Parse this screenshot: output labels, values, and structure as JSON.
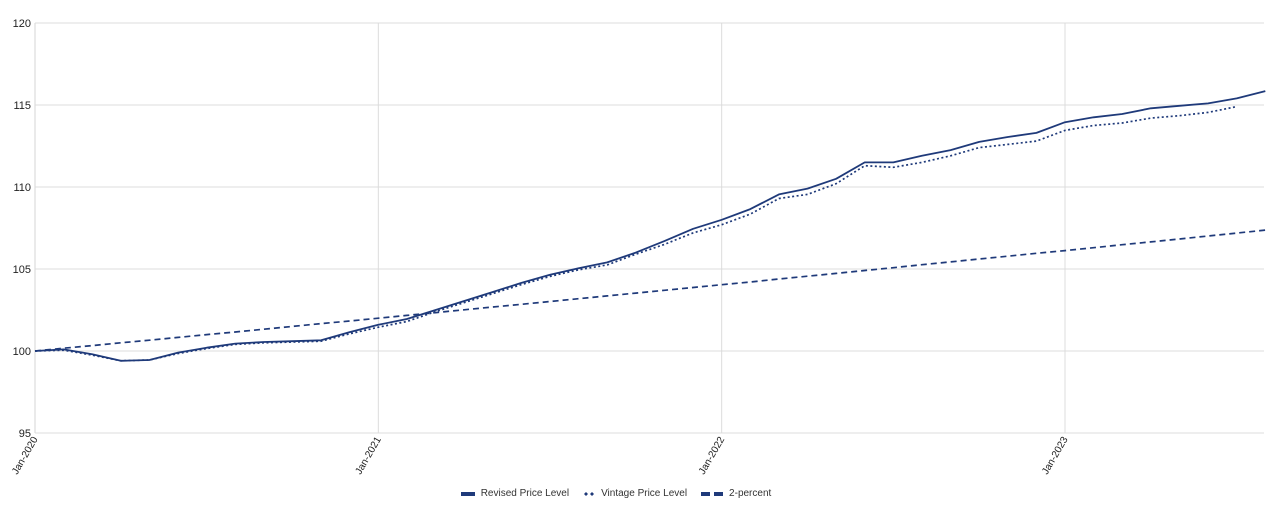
{
  "chart_data": {
    "type": "line",
    "title": "",
    "xlabel": "",
    "ylabel": "",
    "ylim": [
      95,
      120
    ],
    "yticks": [
      95,
      100,
      105,
      110,
      115,
      120
    ],
    "grid": true,
    "legend_position": "bottom",
    "xtick_labels": [
      "Jan-2020",
      "Jan-2021",
      "Jan-2022",
      "Jan-2023"
    ],
    "x": [
      "Jan-2020",
      "Feb-2020",
      "Mar-2020",
      "Apr-2020",
      "May-2020",
      "Jun-2020",
      "Jul-2020",
      "Aug-2020",
      "Sep-2020",
      "Oct-2020",
      "Nov-2020",
      "Dec-2020",
      "Jan-2021",
      "Feb-2021",
      "Mar-2021",
      "Apr-2021",
      "May-2021",
      "Jun-2021",
      "Jul-2021",
      "Aug-2021",
      "Sep-2021",
      "Oct-2021",
      "Nov-2021",
      "Dec-2021",
      "Jan-2022",
      "Feb-2022",
      "Mar-2022",
      "Apr-2022",
      "May-2022",
      "Jun-2022",
      "Jul-2022",
      "Aug-2022",
      "Sep-2022",
      "Oct-2022",
      "Nov-2022",
      "Dec-2022",
      "Jan-2023",
      "Feb-2023",
      "Mar-2023",
      "Apr-2023",
      "May-2023",
      "Jun-2023",
      "Jul-2023",
      "Aug-2023"
    ],
    "series": [
      {
        "name": "Revised Price Level",
        "style": "solid",
        "color": "#1f3a7a",
        "values": [
          100.0,
          100.1,
          99.8,
          99.4,
          99.45,
          99.9,
          100.2,
          100.45,
          100.55,
          100.6,
          100.65,
          101.15,
          101.6,
          101.95,
          102.5,
          103.05,
          103.6,
          104.15,
          104.65,
          105.05,
          105.4,
          106.0,
          106.7,
          107.45,
          108.0,
          108.65,
          109.55,
          109.9,
          110.5,
          111.5,
          111.5,
          111.9,
          112.25,
          112.75,
          113.05,
          113.3,
          113.95,
          114.25,
          114.45,
          114.8,
          114.95,
          115.1,
          115.4,
          115.85
        ]
      },
      {
        "name": "Vintage Price Level",
        "style": "dotted",
        "color": "#1f3a7a",
        "values": [
          100.0,
          100.05,
          99.75,
          99.4,
          99.45,
          99.85,
          100.15,
          100.4,
          100.5,
          100.55,
          100.6,
          101.05,
          101.45,
          101.8,
          102.4,
          102.95,
          103.5,
          104.05,
          104.55,
          104.95,
          105.25,
          105.9,
          106.5,
          107.2,
          107.7,
          108.35,
          109.3,
          109.55,
          110.2,
          111.3,
          111.2,
          111.5,
          111.9,
          112.4,
          112.6,
          112.8,
          113.45,
          113.75,
          113.9,
          114.2,
          114.35,
          114.55,
          114.9,
          null
        ]
      },
      {
        "name": "2-percent",
        "style": "dashed",
        "color": "#1f3a7a",
        "values": [
          100.0,
          100.17,
          100.33,
          100.5,
          100.66,
          100.83,
          101.0,
          101.16,
          101.33,
          101.5,
          101.67,
          101.83,
          102.0,
          102.17,
          102.34,
          102.51,
          102.68,
          102.85,
          103.02,
          103.19,
          103.36,
          103.53,
          103.7,
          103.87,
          104.04,
          104.21,
          104.39,
          104.56,
          104.73,
          104.91,
          105.08,
          105.26,
          105.43,
          105.61,
          105.78,
          105.96,
          106.12,
          106.3,
          106.48,
          106.65,
          106.83,
          107.01,
          107.19,
          107.37
        ]
      }
    ]
  },
  "legend": {
    "items": [
      {
        "label": "Revised Price Level",
        "style": "solid"
      },
      {
        "label": "Vintage Price Level",
        "style": "dotted"
      },
      {
        "label": "2-percent",
        "style": "dashed"
      }
    ]
  },
  "colors": {
    "series": "#1f3a7a",
    "grid": "#dcdcdc",
    "axis_text": "#222222"
  }
}
